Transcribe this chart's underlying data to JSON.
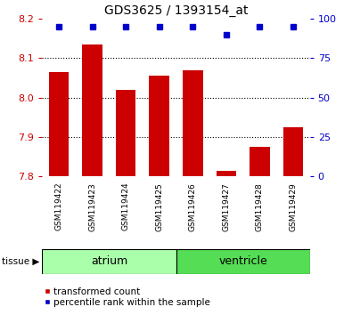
{
  "title": "GDS3625 / 1393154_at",
  "samples": [
    "GSM119422",
    "GSM119423",
    "GSM119424",
    "GSM119425",
    "GSM119426",
    "GSM119427",
    "GSM119428",
    "GSM119429"
  ],
  "transformed_counts": [
    8.065,
    8.135,
    8.02,
    8.055,
    8.07,
    7.815,
    7.875,
    7.925
  ],
  "percentile_ranks": [
    95,
    95,
    95,
    95,
    95,
    90,
    95,
    95
  ],
  "bar_color": "#cc0000",
  "dot_color": "#0000cc",
  "ylim": [
    7.8,
    8.2
  ],
  "yticks_left": [
    7.8,
    7.9,
    8.0,
    8.1,
    8.2
  ],
  "yticks_right": [
    0,
    25,
    50,
    75,
    100
  ],
  "ylabel_left_color": "#cc0000",
  "ylabel_right_color": "#0000cc",
  "grid_lines": [
    7.9,
    8.0,
    8.1
  ],
  "tissue_label_atrium": "atrium",
  "tissue_label_ventricle": "ventricle",
  "tissue_arrow_label": "tissue ▶",
  "legend_red_label": "transformed count",
  "legend_blue_label": "percentile rank within the sample",
  "bar_width": 0.6,
  "background_color": "#ffffff",
  "panel_bg": "#ffffff",
  "atrium_color": "#aaffaa",
  "ventricle_color": "#55dd55",
  "tick_label_area_bg": "#cccccc"
}
